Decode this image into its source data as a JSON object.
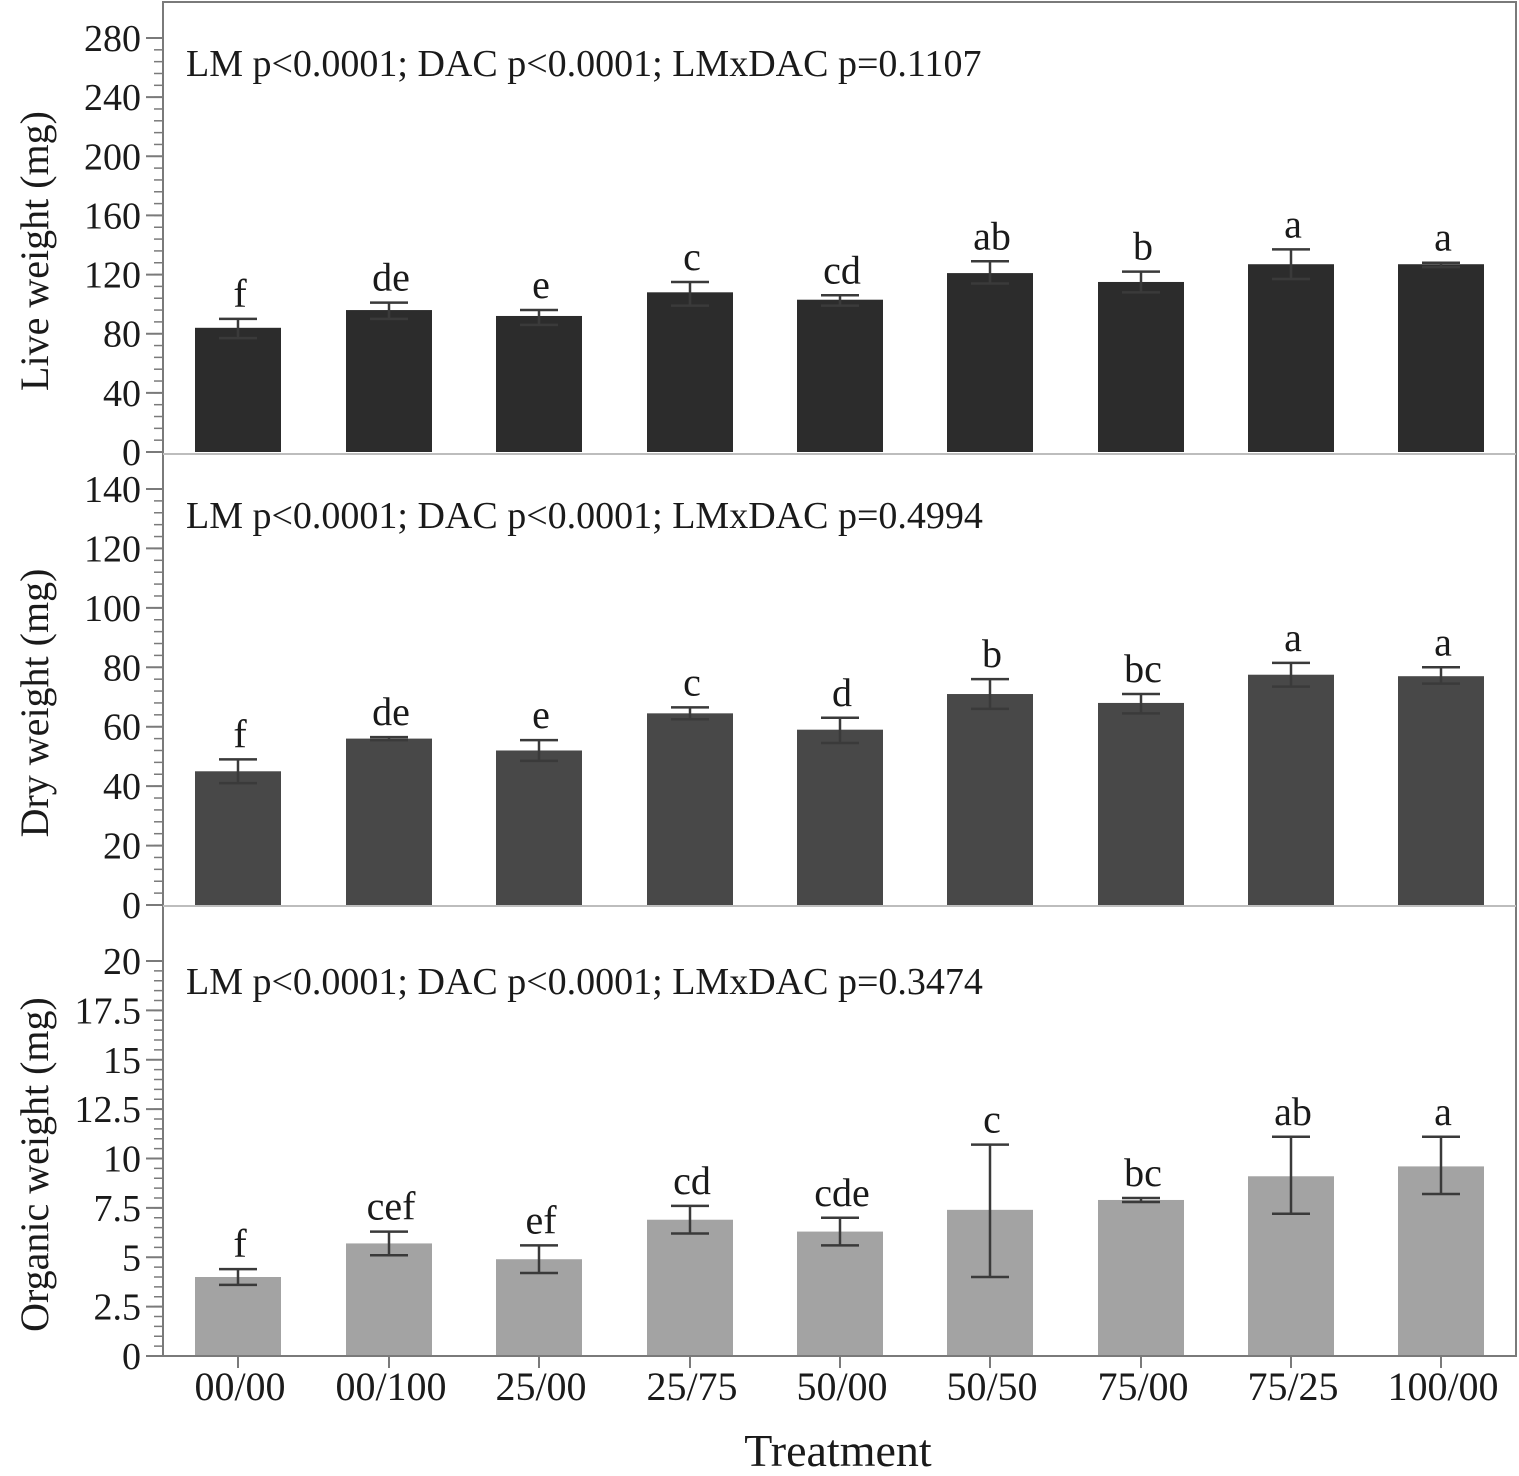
{
  "colors": {
    "background": "#ffffff",
    "frame": "#7a7a7a",
    "panel_divider": "#bdbdbd",
    "error_bar": "#3a3a3a",
    "text": "#1a1a1a"
  },
  "chart_data": {
    "type": "bar",
    "xlabel": "Treatment",
    "categories": [
      "00/00",
      "00/100",
      "25/00",
      "25/75",
      "50/00",
      "50/50",
      "75/00",
      "75/25",
      "100/00"
    ],
    "panels": [
      {
        "ylabel": "Live weight (mg)",
        "annotation": "LM p<0.0001; DAC p<0.0001; LMxDAC p=0.1107",
        "ylim": [
          0,
          280
        ],
        "yticks": [
          0,
          40,
          80,
          120,
          160,
          200,
          240,
          280
        ],
        "ytick_labels": [
          "0",
          "40",
          "80",
          "120",
          "160",
          "200",
          "240",
          "280"
        ],
        "bar_color": "#2c2c2c",
        "values": [
          84,
          96,
          92,
          108,
          103,
          121,
          115,
          127,
          127
        ],
        "error_low": [
          77,
          90,
          86,
          99,
          99,
          114,
          108,
          117,
          125
        ],
        "error_high": [
          90,
          101,
          96,
          115,
          106,
          129,
          122,
          137,
          128
        ],
        "letters": [
          "f",
          "de",
          "e",
          "c",
          "cd",
          "ab",
          "b",
          "a",
          "a"
        ]
      },
      {
        "ylabel": "Dry weight (mg)",
        "annotation": "LM p<0.0001; DAC p<0.0001; LMxDAC p=0.4994",
        "ylim": [
          0,
          140
        ],
        "yticks": [
          0,
          20,
          40,
          60,
          80,
          100,
          120,
          140
        ],
        "ytick_labels": [
          "0",
          "20",
          "40",
          "60",
          "80",
          "100",
          "120",
          "140"
        ],
        "bar_color": "#484848",
        "values": [
          45,
          56,
          52,
          64.5,
          59,
          71,
          68,
          77.5,
          77
        ],
        "error_low": [
          41,
          55.5,
          48.5,
          62.5,
          54.5,
          66,
          64.5,
          73.5,
          74.5
        ],
        "error_high": [
          49,
          56.5,
          55.5,
          66.5,
          63,
          76,
          71,
          81.5,
          80
        ],
        "letters": [
          "f",
          "de",
          "e",
          "c",
          "d",
          "b",
          "bc",
          "a",
          "a"
        ]
      },
      {
        "ylabel": "Organic weight (mg)",
        "annotation": "LM p<0.0001; DAC p<0.0001; LMxDAC p=0.3474",
        "ylim": [
          0,
          20
        ],
        "yticks": [
          0,
          2.5,
          5,
          7.5,
          10,
          12.5,
          15,
          17.5,
          20
        ],
        "ytick_labels": [
          "0",
          "2.5",
          "5",
          "7.5",
          "10",
          "12.5",
          "15",
          "17.5",
          "20"
        ],
        "bar_color": "#a3a3a3",
        "values": [
          4,
          5.7,
          4.9,
          6.9,
          6.3,
          7.4,
          7.9,
          9.1,
          9.6
        ],
        "error_low": [
          3.6,
          5.1,
          4.2,
          6.2,
          5.6,
          4,
          7.8,
          7.2,
          8.2
        ],
        "error_high": [
          4.4,
          6.3,
          5.6,
          7.6,
          7.0,
          10.7,
          8.0,
          11.1,
          11.1
        ],
        "letters": [
          "f",
          "cef",
          "ef",
          "cd",
          "cde",
          "c",
          "bc",
          "ab",
          "a"
        ]
      }
    ]
  }
}
